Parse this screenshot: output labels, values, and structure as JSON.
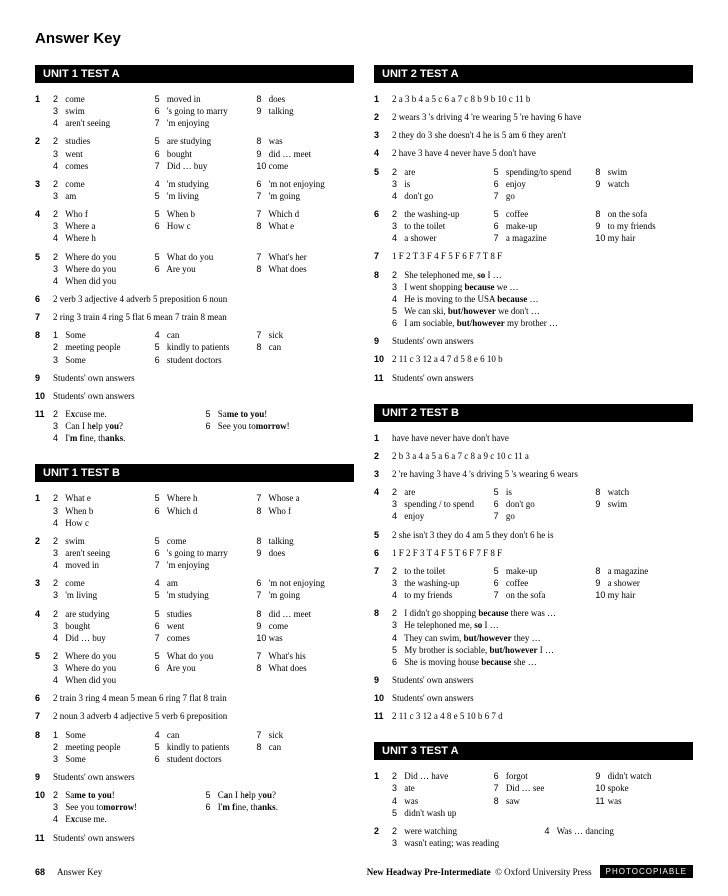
{
  "page_title": "Answer Key",
  "footer": {
    "page": "68",
    "section": "Answer Key",
    "book": "New Headway Pre-Intermediate",
    "publisher": "© Oxford University Press",
    "badge": "PHOTOCOPIABLE"
  },
  "u1a": {
    "title": "UNIT 1  TEST A",
    "q1": [
      [
        "2",
        "come"
      ],
      [
        "5",
        "moved in"
      ],
      [
        "8",
        "does"
      ],
      [
        "3",
        "swim"
      ],
      [
        "6",
        "'s going to marry"
      ],
      [
        "9",
        "talking"
      ],
      [
        "4",
        "aren't seeing"
      ],
      [
        "7",
        "'m enjoying"
      ]
    ],
    "q2": [
      [
        "2",
        "studies"
      ],
      [
        "5",
        "are studying"
      ],
      [
        "8",
        "was"
      ],
      [
        "3",
        "went"
      ],
      [
        "6",
        "bought"
      ],
      [
        "9",
        "did … meet"
      ],
      [
        "4",
        "comes"
      ],
      [
        "7",
        "Did … buy"
      ],
      [
        "10",
        "come"
      ]
    ],
    "q3": [
      [
        "2",
        "come"
      ],
      [
        "4",
        "'m studying"
      ],
      [
        "6",
        "'m not enjoying"
      ],
      [
        "3",
        "am"
      ],
      [
        "5",
        "'m living"
      ],
      [
        "7",
        "'m going"
      ]
    ],
    "q4": [
      [
        "2",
        "Who  f"
      ],
      [
        "5",
        "When  b"
      ],
      [
        "7",
        "Which  d"
      ],
      [
        "3",
        "Where  a"
      ],
      [
        "6",
        "How  c"
      ],
      [
        "8",
        "What  e"
      ],
      [
        "4",
        "Where  h"
      ]
    ],
    "q5": [
      [
        "2",
        "Where do you"
      ],
      [
        "5",
        "What do you"
      ],
      [
        "7",
        "What's her"
      ],
      [
        "3",
        "Where do you"
      ],
      [
        "6",
        "Are you"
      ],
      [
        "8",
        "What does"
      ],
      [
        "4",
        "When did you"
      ]
    ],
    "q6": "2 verb   3 adjective   4 adverb   5 preposition   6 noun",
    "q7": "2 ring   3 train   4 ring   5 flat   6 mean   7 train   8 mean",
    "q8": [
      [
        "1",
        "Some"
      ],
      [
        "4",
        "can"
      ],
      [
        "7",
        "sick"
      ],
      [
        "2",
        "meeting people"
      ],
      [
        "5",
        "kindly to patients"
      ],
      [
        "8",
        "can"
      ],
      [
        "3",
        "Some"
      ],
      [
        "6",
        "student doctors"
      ]
    ],
    "q9": "Students' own answers",
    "q10": "Students' own answers",
    "q11": [
      [
        "2",
        "E<b>x</b>cuse me."
      ],
      [
        "5",
        "Sa<b>me to you</b>!"
      ],
      [
        "3",
        "Can I h<b>e</b>lp y<b>ou</b>?"
      ],
      [
        "6",
        "See you to<b>morrow</b>!"
      ],
      [
        "4",
        "I'<b>m f</b>ine, th<b>anks</b>."
      ]
    ]
  },
  "u1b": {
    "title": "UNIT 1  TEST B",
    "q1": [
      [
        "2",
        "What  e"
      ],
      [
        "5",
        "Where  h"
      ],
      [
        "7",
        "Whose  a"
      ],
      [
        "3",
        "When  b"
      ],
      [
        "6",
        "Which  d"
      ],
      [
        "8",
        "Who  f"
      ],
      [
        "4",
        "How  c"
      ]
    ],
    "q2": [
      [
        "2",
        "swim"
      ],
      [
        "5",
        "come"
      ],
      [
        "8",
        "talking"
      ],
      [
        "3",
        "aren't seeing"
      ],
      [
        "6",
        "'s going to marry"
      ],
      [
        "9",
        "does"
      ],
      [
        "4",
        "moved in"
      ],
      [
        "7",
        "'m enjoying"
      ]
    ],
    "q3": [
      [
        "2",
        "come"
      ],
      [
        "4",
        "am"
      ],
      [
        "6",
        "'m not enjoying"
      ],
      [
        "3",
        "'m living"
      ],
      [
        "5",
        "'m studying"
      ],
      [
        "7",
        "'m going"
      ]
    ],
    "q4": [
      [
        "2",
        "are studying"
      ],
      [
        "5",
        "studies"
      ],
      [
        "8",
        "did … meet"
      ],
      [
        "3",
        "bought"
      ],
      [
        "6",
        "went"
      ],
      [
        "9",
        "come"
      ],
      [
        "4",
        "Did … buy"
      ],
      [
        "7",
        "comes"
      ],
      [
        "10",
        "was"
      ]
    ],
    "q5": [
      [
        "2",
        "Where do you"
      ],
      [
        "5",
        "What do you"
      ],
      [
        "7",
        "What's his"
      ],
      [
        "3",
        "Where do you"
      ],
      [
        "6",
        "Are you"
      ],
      [
        "8",
        "What does"
      ],
      [
        "4",
        "When did you"
      ]
    ],
    "q6": "2 train   3 ring   4 mean   5 mean   6 ring   7 flat   8 train",
    "q7": "2 noun   3 adverb   4 adjective   5 verb   6 preposition",
    "q8": [
      [
        "1",
        "Some"
      ],
      [
        "4",
        "can"
      ],
      [
        "7",
        "sick"
      ],
      [
        "2",
        "meeting people"
      ],
      [
        "5",
        "kindly to patients"
      ],
      [
        "8",
        "can"
      ],
      [
        "3",
        "Some"
      ],
      [
        "6",
        "student doctors"
      ]
    ],
    "q9": "Students' own answers",
    "q10": [
      [
        "2",
        "Sa<b>me to you</b>!"
      ],
      [
        "5",
        "C<b>a</b>n I h<b>e</b>lp y<b>ou</b>?"
      ],
      [
        "3",
        "See you to<b>morrow</b>!"
      ],
      [
        "6",
        "I'<b>m f</b>ine, th<b>anks</b>."
      ],
      [
        "4",
        "E<b>x</b>cuse me."
      ]
    ],
    "q11": "Students' own answers"
  },
  "u2a": {
    "title": "UNIT 2  TEST A",
    "q1": "2 a   3 b   4 a   5 c   6 a   7 c   8 b   9 b   10 c   11 b",
    "q2": "2 wears   3 's driving   4 're wearing   5 're having   6 have",
    "q3": "2 they do   3 she doesn't   4 he is   5 am   6 they aren't",
    "q4": "2 have   3 have   4 never have   5 don't have",
    "q5": [
      [
        "2",
        "are"
      ],
      [
        "5",
        "spending/to spend"
      ],
      [
        "8",
        "swim"
      ],
      [
        "3",
        "is"
      ],
      [
        "6",
        "enjoy"
      ],
      [
        "9",
        "watch"
      ],
      [
        "4",
        "don't go"
      ],
      [
        "7",
        "go"
      ]
    ],
    "q6": [
      [
        "2",
        "the washing-up"
      ],
      [
        "5",
        "coffee"
      ],
      [
        "8",
        "on the sofa"
      ],
      [
        "3",
        "to the toilet"
      ],
      [
        "6",
        "make-up"
      ],
      [
        "9",
        "to my friends"
      ],
      [
        "4",
        "a shower"
      ],
      [
        "7",
        "a magazine"
      ],
      [
        "10",
        "my hair"
      ]
    ],
    "q7": "1 F   2 T   3 F   4 F   5 F   6 F   7 T   8 F",
    "q8": [
      [
        "2",
        "She telephoned me, <b>so</b> I …"
      ],
      [
        "3",
        "I went shopping <b>because</b> we …"
      ],
      [
        "4",
        "He is moving to the USA <b>because</b> …"
      ],
      [
        "5",
        "We can ski, <b>but/however</b> we don't …"
      ],
      [
        "6",
        "I am sociable, <b>but/however</b> my brother …"
      ]
    ],
    "q9": "Students' own answers",
    "q10": "2 11 c   3 12 a   4 7 d   5 8 e   6 10 b",
    "q11": "Students' own answers"
  },
  "u2b": {
    "title": "UNIT 2  TEST B",
    "q1": "have   have   never have   don't have",
    "q2": "2 b   3 a   4 a   5 a   6 a   7 c   8 a   9 c   10 c   11 a",
    "q3": "2 're having   3 have   4 's driving   5 's wearing   6 wears",
    "q4": [
      [
        "2",
        "are"
      ],
      [
        "5",
        "is"
      ],
      [
        "8",
        "watch"
      ],
      [
        "3",
        "spending / to spend"
      ],
      [
        "6",
        "don't go"
      ],
      [
        "9",
        "swim"
      ],
      [
        "4",
        "enjoy"
      ],
      [
        "7",
        "go"
      ]
    ],
    "q5": "2 she isn't   3 they do   4 am   5 they don't   6 he is",
    "q6": "1 F   2 F   3 T   4 F   5 T   6 F   7 F   8 F",
    "q7": [
      [
        "2",
        "to the toilet"
      ],
      [
        "5",
        "make-up"
      ],
      [
        "8",
        "a magazine"
      ],
      [
        "3",
        "the washing-up"
      ],
      [
        "6",
        "coffee"
      ],
      [
        "9",
        "a shower"
      ],
      [
        "4",
        "to my friends"
      ],
      [
        "7",
        "on the sofa"
      ],
      [
        "10",
        "my hair"
      ]
    ],
    "q8": [
      [
        "2",
        "I didn't go shopping <b>because</b> there was …"
      ],
      [
        "3",
        "He telephoned me, <b>so</b> I …"
      ],
      [
        "4",
        "They can swim, <b>but/however</b> they …"
      ],
      [
        "5",
        "My brother is sociable, <b>but/however</b> I …"
      ],
      [
        "6",
        "She is moving house <b>because</b> she …"
      ]
    ],
    "q9": "Students' own answers",
    "q10": "Students' own answers",
    "q11": "2 11 c   3 12 a   4 8 e   5 10 b   6 7 d"
  },
  "u3a": {
    "title": "UNIT 3  TEST A",
    "q1": [
      [
        "2",
        "Did … have"
      ],
      [
        "6",
        "forgot"
      ],
      [
        "9",
        "didn't watch"
      ],
      [
        "3",
        "ate"
      ],
      [
        "7",
        "Did … see"
      ],
      [
        "10",
        "spoke"
      ],
      [
        "4",
        "was"
      ],
      [
        "8",
        "saw"
      ],
      [
        "11",
        "was"
      ],
      [
        "5",
        "didn't wash up"
      ]
    ],
    "q2l": [
      [
        "2",
        "were watching"
      ],
      [
        "3",
        "wasn't eating; was reading"
      ]
    ],
    "q2r": [
      [
        "4",
        "Was … dancing"
      ]
    ]
  }
}
